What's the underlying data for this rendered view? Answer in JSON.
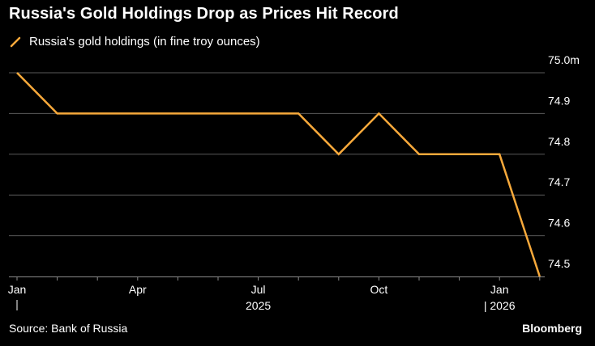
{
  "chart_data": {
    "type": "line",
    "title": "Russia's Gold Holdings Drop as Prices Hit Record",
    "series": [
      {
        "name": "Russia's gold holdings (in fine troy ounces)",
        "color": "#f7a93b",
        "x": [
          "2025-01-01",
          "2025-02-01",
          "2025-03-01",
          "2025-04-01",
          "2025-05-01",
          "2025-06-01",
          "2025-07-01",
          "2025-08-01",
          "2025-09-01",
          "2025-10-01",
          "2025-11-01",
          "2025-12-01",
          "2026-01-01",
          "2026-02-01"
        ],
        "values": [
          75.0,
          74.9,
          74.9,
          74.9,
          74.9,
          74.9,
          74.9,
          74.9,
          74.8,
          74.9,
          74.8,
          74.8,
          74.8,
          74.5
        ]
      }
    ],
    "ylim": [
      74.5,
      75.0
    ],
    "yticks": [
      {
        "value": 75.0,
        "label": "75.0m"
      },
      {
        "value": 74.9,
        "label": "74.9"
      },
      {
        "value": 74.8,
        "label": "74.8"
      },
      {
        "value": 74.7,
        "label": "74.7"
      },
      {
        "value": 74.6,
        "label": "74.6"
      },
      {
        "value": 74.5,
        "label": "74.5"
      }
    ],
    "xticks": [
      {
        "month": 0,
        "label": "Jan"
      },
      {
        "month": 3,
        "label": "Apr"
      },
      {
        "month": 6,
        "label": "Jul"
      },
      {
        "month": 9,
        "label": "Oct"
      },
      {
        "month": 12,
        "label": "Jan"
      }
    ],
    "year_labels": [
      {
        "month": 6,
        "label": "2025"
      },
      {
        "month": 12,
        "label": "| 2026"
      }
    ],
    "grid": true,
    "legend_position": "top-left"
  },
  "footer": {
    "source": "Source: Bank of Russia",
    "brand": "Bloomberg"
  }
}
